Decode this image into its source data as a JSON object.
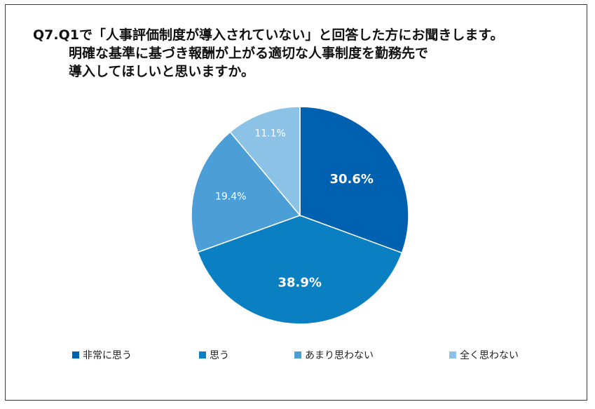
{
  "title": {
    "line1": "Q7.Q1で「人事評価制度が導入されていない」と回答した方にお聞きします。",
    "line2": "明確な基準に基づき報酬が上がる適切な人事制度を勤務先で",
    "line3": "導入してほしいと思いますか。"
  },
  "chart_data": {
    "type": "pie",
    "title": "Q7.Q1で「人事評価制度が導入されていない」と回答した方にお聞きします。明確な基準に基づき報酬が上がる適切な人事制度を勤務先で導入してほしいと思いますか。",
    "unit": "%",
    "categories": [
      "非常に思う",
      "思う",
      "あまり思わない",
      "全く思わない"
    ],
    "values": [
      30.6,
      38.9,
      19.4,
      11.1
    ],
    "labels": [
      "30.6%",
      "38.9%",
      "19.4%",
      "11.1%"
    ],
    "colors": [
      "#0061b0",
      "#0a7fc2",
      "#4b9fd6",
      "#8cc2e5"
    ],
    "start_angle": "12 o'clock",
    "direction": "clockwise",
    "legend_position": "bottom"
  }
}
